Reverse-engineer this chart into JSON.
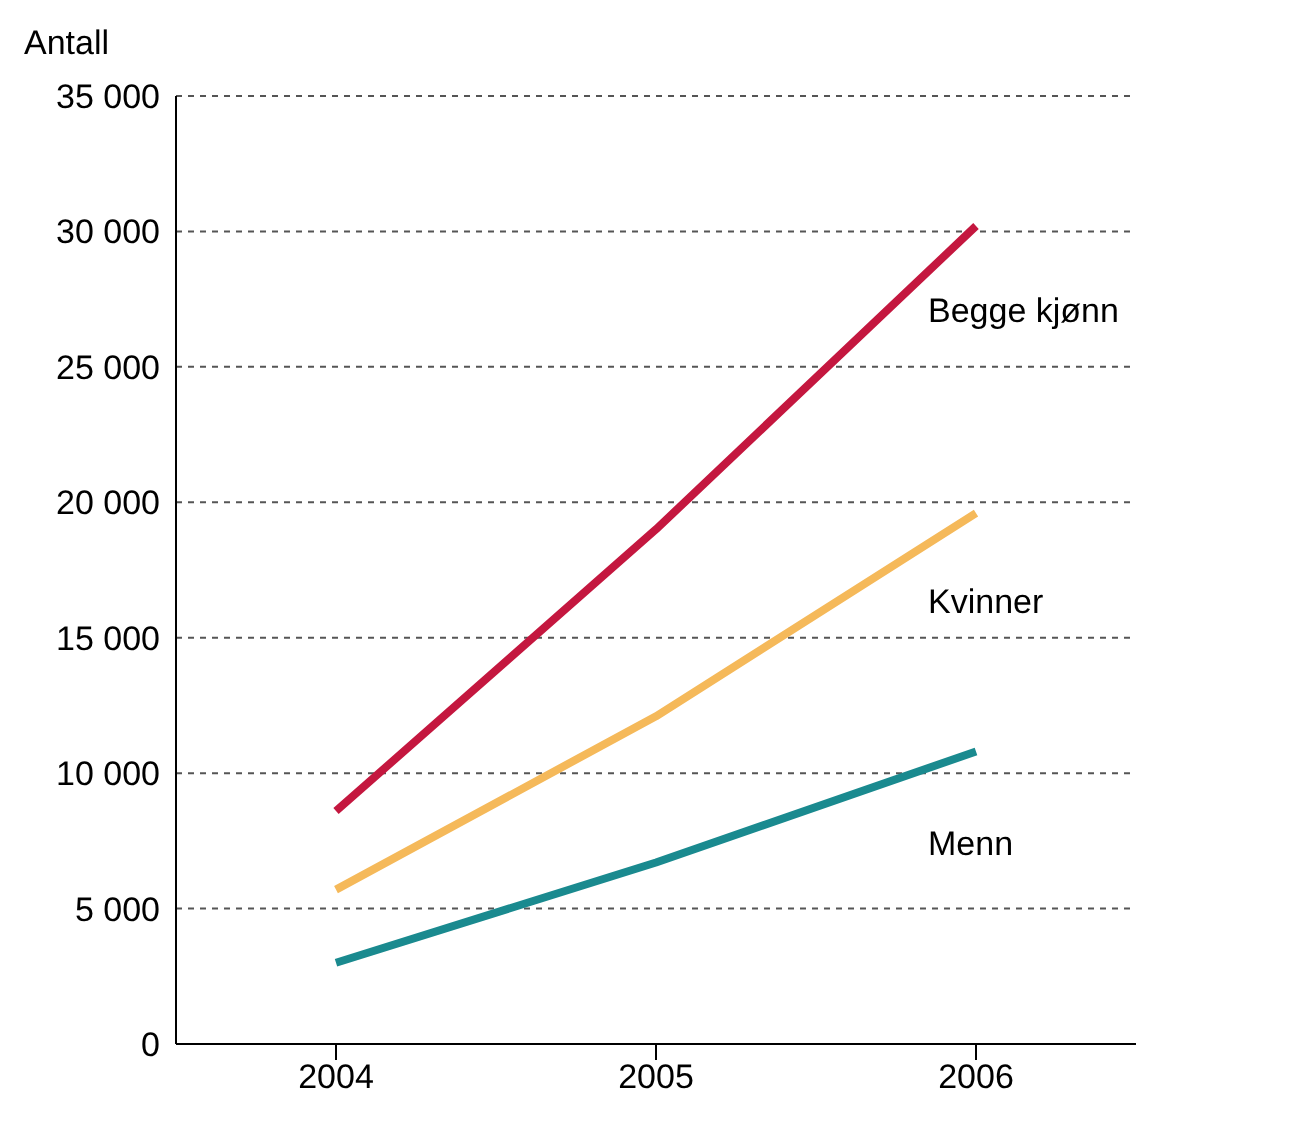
{
  "chart_data": {
    "type": "line",
    "ylabel": "Antall",
    "x": [
      2004,
      2005,
      2006
    ],
    "xlim": [
      2003.5,
      2006.5
    ],
    "xticks": [
      2004,
      2005,
      2006
    ],
    "ylim": [
      0,
      35000
    ],
    "yticks": [
      {
        "value": 0,
        "label": "0"
      },
      {
        "value": 5000,
        "label": "5 000"
      },
      {
        "value": 10000,
        "label": "10 000"
      },
      {
        "value": 15000,
        "label": "15 000"
      },
      {
        "value": 20000,
        "label": "20 000"
      },
      {
        "value": 25000,
        "label": "25 000"
      },
      {
        "value": 30000,
        "label": "30 000"
      },
      {
        "value": 35000,
        "label": "35 000"
      }
    ],
    "grid": "y",
    "legend": false,
    "marker": "none",
    "line_style": "solid",
    "series": [
      {
        "name": "Begge kjønn",
        "color": "#c4173f",
        "values": [
          8600,
          19000,
          30200
        ]
      },
      {
        "name": "Kvinner",
        "color": "#f5b95a",
        "values": [
          5700,
          12100,
          19600
        ]
      },
      {
        "name": "Menn",
        "color": "#1a8a8f",
        "values": [
          3000,
          6700,
          10800
        ]
      }
    ]
  }
}
